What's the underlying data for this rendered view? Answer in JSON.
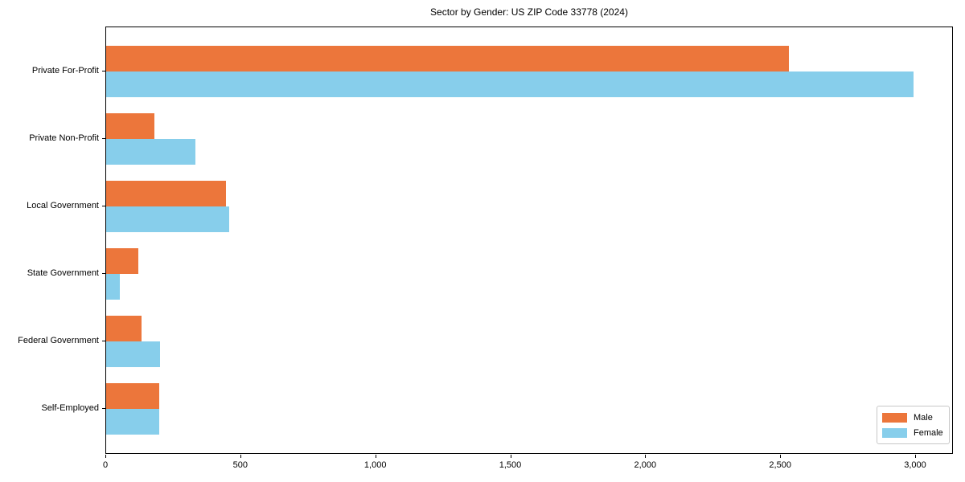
{
  "chart_data": {
    "type": "bar",
    "orientation": "horizontal",
    "title": "Sector by Gender: US ZIP Code 33778 (2024)",
    "categories": [
      "Private For-Profit",
      "Private Non-Profit",
      "Local Government",
      "State Government",
      "Federal Government",
      "Self-Employed"
    ],
    "series": [
      {
        "name": "Male",
        "color": "#EC763B",
        "values": [
          2530,
          180,
          445,
          120,
          130,
          195
        ]
      },
      {
        "name": "Female",
        "color": "#87CEEB",
        "values": [
          2990,
          330,
          455,
          50,
          200,
          195
        ]
      }
    ],
    "xlabel": "",
    "ylabel": "",
    "xlim": [
      0,
      3140
    ],
    "xticks": [
      0,
      500,
      1000,
      1500,
      2000,
      2500,
      3000
    ],
    "xtick_labels": [
      "0",
      "500",
      "1,000",
      "1,500",
      "2,000",
      "2,500",
      "3,000"
    ],
    "grid": false,
    "legend_position": "lower right",
    "colors": {
      "background": "#ffffff",
      "axis": "#000000",
      "legend_border": "#c8c8c8"
    }
  }
}
